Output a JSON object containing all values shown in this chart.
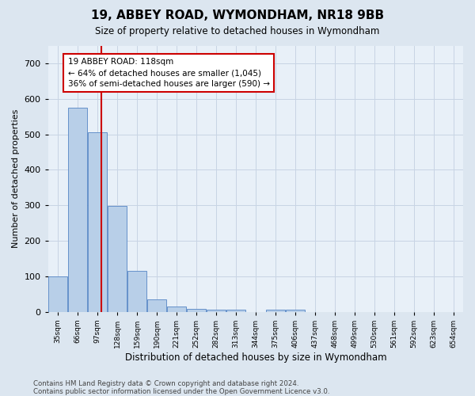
{
  "title": "19, ABBEY ROAD, WYMONDHAM, NR18 9BB",
  "subtitle": "Size of property relative to detached houses in Wymondham",
  "xlabel": "Distribution of detached houses by size in Wymondham",
  "ylabel": "Number of detached properties",
  "footer_line1": "Contains HM Land Registry data © Crown copyright and database right 2024.",
  "footer_line2": "Contains public sector information licensed under the Open Government Licence v3.0.",
  "bin_labels": [
    "35sqm",
    "66sqm",
    "97sqm",
    "128sqm",
    "159sqm",
    "190sqm",
    "221sqm",
    "252sqm",
    "282sqm",
    "313sqm",
    "344sqm",
    "375sqm",
    "406sqm",
    "437sqm",
    "468sqm",
    "499sqm",
    "530sqm",
    "561sqm",
    "592sqm",
    "623sqm",
    "654sqm"
  ],
  "bar_heights": [
    100,
    575,
    505,
    298,
    115,
    35,
    15,
    8,
    5,
    5,
    0,
    5,
    5,
    0,
    0,
    0,
    0,
    0,
    0,
    0,
    0
  ],
  "bin_width": 31,
  "bar_color": "#b8cfe8",
  "bar_edgecolor": "#5585c5",
  "property_line_x": 118,
  "property_line_label": "19 ABBEY ROAD: 118sqm",
  "annotation_line1": "← 64% of detached houses are smaller (1,045)",
  "annotation_line2": "36% of semi-detached houses are larger (590) →",
  "annotation_box_color": "#cc0000",
  "annotation_bg": "white",
  "ylim": [
    0,
    750
  ],
  "yticks": [
    0,
    100,
    200,
    300,
    400,
    500,
    600,
    700
  ],
  "grid_color": "#c8d4e4",
  "background_color": "#dce6f0",
  "plot_bg_color": "#e8f0f8"
}
